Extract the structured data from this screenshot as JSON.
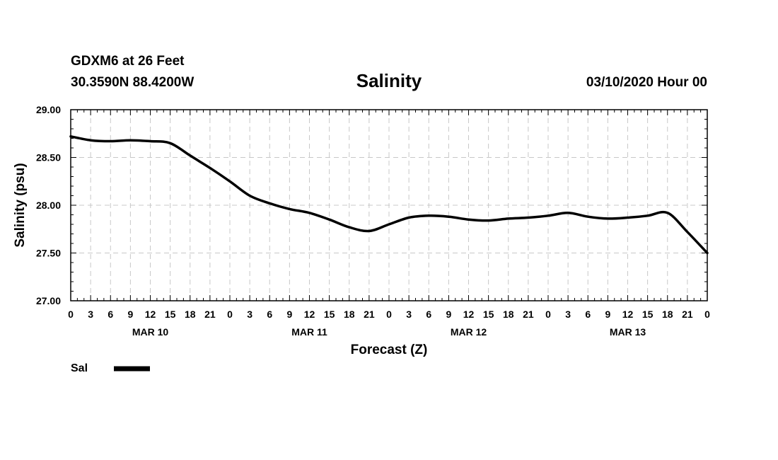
{
  "header": {
    "station": "GDXM6 at 26 Feet",
    "coords": "30.3590N 88.4200W",
    "run": "03/10/2020 Hour 00"
  },
  "legend": {
    "label": "Sal",
    "color": "#000000"
  },
  "chart_data": {
    "type": "line",
    "title": "Salinity",
    "xlabel": "Forecast (Z)",
    "ylabel": "Salinity (psu)",
    "xlim": [
      0,
      96
    ],
    "ylim": [
      27.0,
      29.0
    ],
    "grid": true,
    "legend_position": "bottom-left",
    "yticks": [
      "27.00",
      "27.50",
      "28.00",
      "28.50",
      "29.00"
    ],
    "xtick_labels": [
      "0",
      "3",
      "6",
      "9",
      "12",
      "15",
      "18",
      "21",
      "0",
      "3",
      "6",
      "9",
      "12",
      "15",
      "18",
      "21",
      "0",
      "3",
      "6",
      "9",
      "12",
      "15",
      "18",
      "21",
      "0",
      "3",
      "6",
      "9",
      "12",
      "15",
      "18",
      "21",
      "0"
    ],
    "day_labels": [
      {
        "label": "MAR 10",
        "hour": 12
      },
      {
        "label": "MAR 11",
        "hour": 36
      },
      {
        "label": "MAR 12",
        "hour": 60
      },
      {
        "label": "MAR 13",
        "hour": 84
      }
    ],
    "series": [
      {
        "name": "Sal",
        "x": [
          0,
          3,
          6,
          9,
          12,
          15,
          18,
          21,
          24,
          27,
          30,
          33,
          36,
          39,
          42,
          45,
          48,
          51,
          54,
          57,
          60,
          63,
          66,
          69,
          72,
          75,
          78,
          81,
          84,
          87,
          90,
          93,
          96
        ],
        "values": [
          28.72,
          28.68,
          28.67,
          28.68,
          28.67,
          28.65,
          28.52,
          28.39,
          28.25,
          28.1,
          28.02,
          27.96,
          27.92,
          27.85,
          27.77,
          27.73,
          27.8,
          27.87,
          27.89,
          27.88,
          27.85,
          27.84,
          27.86,
          27.87,
          27.89,
          27.92,
          27.88,
          27.86,
          27.87,
          27.89,
          27.92,
          27.72,
          27.5
        ]
      }
    ]
  }
}
